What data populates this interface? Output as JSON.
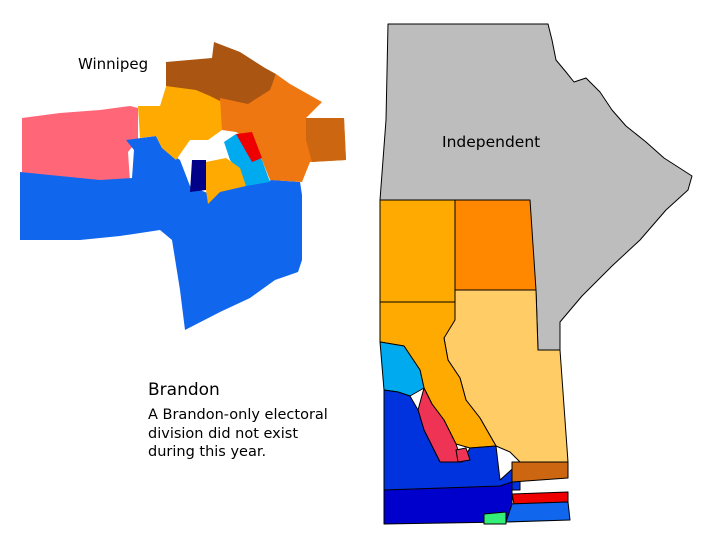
{
  "labels": {
    "winnipeg": "Winnipeg",
    "independent": "Independent",
    "brandon": "Brandon",
    "brandon_note": "A Brandon-only electoral division did not exist during this year."
  },
  "colors": {
    "independent": "#bdbdbd",
    "orange_light": "#ffaa00",
    "orange": "#ff8800",
    "tan": "#ffcc66",
    "sky": "#00aaee",
    "blue": "#1166ee",
    "blue_mid": "#0033dd",
    "navy": "#0000cc",
    "dark_navy": "#000088",
    "red": "#ee0000",
    "pink_red": "#ee3355",
    "salmon": "#ff6677",
    "brown": "#aa5511",
    "brown_orange": "#cc6611",
    "dark_orange": "#ee7711",
    "green": "#33ee77"
  }
}
